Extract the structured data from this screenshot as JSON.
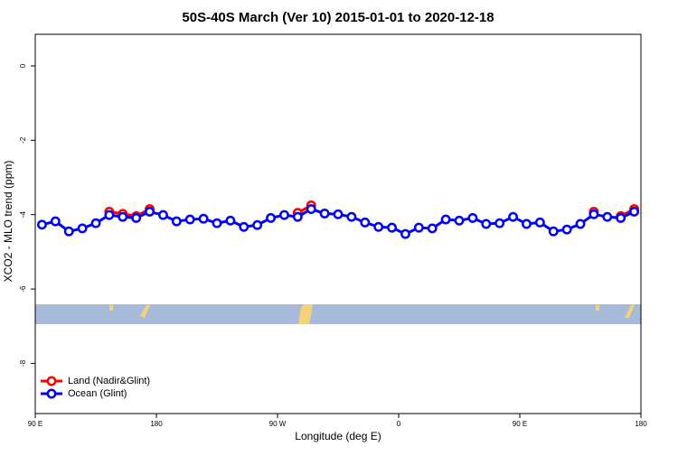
{
  "chart_data": {
    "type": "line",
    "title": "50S-40S March (Ver 10)   2015-01-01 to 2020-12-18",
    "x_label": "Longitude (deg E)",
    "y_label": "XCO2 - MLO trend (ppm)",
    "x": [
      95,
      105,
      115,
      125,
      135,
      145,
      155,
      165,
      175,
      185,
      195,
      205,
      215,
      225,
      235,
      245,
      255,
      265,
      275,
      285,
      295,
      305,
      315,
      325,
      335,
      345,
      355,
      365,
      375,
      385,
      395,
      405,
      415,
      425,
      435,
      445,
      455,
      465,
      475,
      485,
      495,
      505,
      515,
      525,
      535
    ],
    "series": [
      {
        "name": "Land (Nadir&Glint)",
        "color": "#ff0000",
        "values": [
          null,
          null,
          null,
          null,
          null,
          -3.92,
          -3.98,
          -4.04,
          -3.85,
          null,
          null,
          null,
          null,
          null,
          null,
          null,
          null,
          null,
          null,
          -3.95,
          -3.75,
          null,
          null,
          null,
          null,
          null,
          null,
          null,
          null,
          null,
          null,
          null,
          null,
          null,
          null,
          null,
          null,
          null,
          null,
          null,
          null,
          -3.92,
          null,
          -4.04,
          -3.85
        ]
      },
      {
        "name": "Ocean (Glint)",
        "color": "#0000ff",
        "values": [
          -4.27,
          -4.18,
          -4.45,
          -4.37,
          -4.23,
          -4.01,
          -4.06,
          -4.09,
          -3.92,
          -4.01,
          -4.18,
          -4.13,
          -4.11,
          -4.23,
          -4.16,
          -4.33,
          -4.28,
          -4.09,
          -4.01,
          -4.06,
          -3.85,
          -3.97,
          -3.99,
          -4.06,
          -4.21,
          -4.33,
          -4.35,
          -4.52,
          -4.35,
          -4.37,
          -4.13,
          -4.16,
          -4.09,
          -4.25,
          -4.23,
          -4.06,
          -4.25,
          -4.21,
          -4.45,
          -4.4,
          -4.25,
          -3.99,
          -4.06,
          -4.09,
          -3.92
        ]
      }
    ],
    "xlim": [
      90,
      540
    ],
    "xticks": [
      {
        "value": 90,
        "label": "90 E"
      },
      180,
      {
        "value": 270,
        "label": "90 W"
      },
      {
        "value": 360,
        "label": "0"
      },
      {
        "value": 450,
        "label": "90 E"
      },
      {
        "value": 540,
        "label": "180"
      }
    ],
    "ylim": [
      -9.35,
      0.85
    ],
    "yticks": [
      -8,
      -6,
      -4,
      -2,
      0
    ],
    "legend": "bottom-left"
  }
}
